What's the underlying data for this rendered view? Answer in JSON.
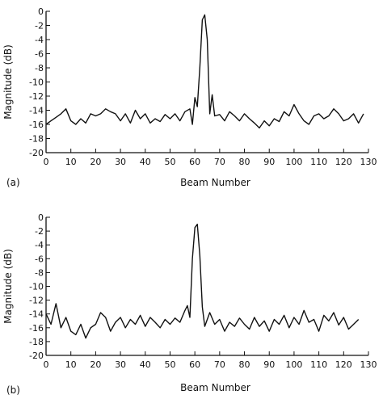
{
  "chart_data": [
    {
      "type": "line",
      "panel_label": "(a)",
      "xlabel": "Beam Number",
      "ylabel": "Magnitude (dB)",
      "xlim": [
        0,
        130
      ],
      "ylim": [
        -20,
        0
      ],
      "xticks": [
        0,
        10,
        20,
        30,
        40,
        50,
        60,
        70,
        80,
        90,
        100,
        110,
        120,
        130
      ],
      "yticks": [
        0,
        -2,
        -4,
        -6,
        -8,
        -10,
        -12,
        -14,
        -16,
        -18,
        -20
      ],
      "x": [
        0,
        2,
        4,
        6,
        8,
        10,
        12,
        14,
        16,
        18,
        20,
        22,
        24,
        26,
        28,
        30,
        32,
        34,
        36,
        38,
        40,
        42,
        44,
        46,
        48,
        50,
        52,
        54,
        56,
        58,
        59,
        60,
        61,
        62,
        63,
        64,
        65,
        66,
        67,
        68,
        70,
        72,
        74,
        76,
        78,
        80,
        82,
        84,
        86,
        88,
        90,
        92,
        94,
        96,
        98,
        100,
        102,
        104,
        106,
        108,
        110,
        112,
        114,
        116,
        118,
        120,
        122,
        124,
        126,
        128
      ],
      "y": [
        -16,
        -15.5,
        -15,
        -14.5,
        -13.8,
        -15.5,
        -16,
        -15.2,
        -15.8,
        -14.5,
        -14.8,
        -14.5,
        -13.8,
        -14.2,
        -14.5,
        -15.5,
        -14.5,
        -15.8,
        -14,
        -15.2,
        -14.5,
        -15.8,
        -15.2,
        -15.6,
        -14.6,
        -15.2,
        -14.5,
        -15.5,
        -14.2,
        -13.8,
        -16,
        -12.2,
        -13.5,
        -8,
        -1.2,
        -0.5,
        -4,
        -14.5,
        -11.8,
        -14.8,
        -14.6,
        -15.5,
        -14.2,
        -14.8,
        -15.5,
        -14.5,
        -15.2,
        -15.8,
        -16.5,
        -15.5,
        -16.2,
        -15.2,
        -15.6,
        -14.2,
        -14.8,
        -13.2,
        -14.5,
        -15.5,
        -16,
        -14.8,
        -14.5,
        -15.2,
        -14.8,
        -13.8,
        -14.5,
        -15.5,
        -15.2,
        -14.5,
        -15.8,
        -14.5
      ]
    },
    {
      "type": "line",
      "panel_label": "(b)",
      "xlabel": "Beam Number",
      "ylabel": "Magnitude (dB)",
      "xlim": [
        0,
        130
      ],
      "ylim": [
        -20,
        0
      ],
      "xticks": [
        0,
        10,
        20,
        30,
        40,
        50,
        60,
        70,
        80,
        90,
        100,
        110,
        120,
        130
      ],
      "yticks": [
        0,
        -2,
        -4,
        -6,
        -8,
        -10,
        -12,
        -14,
        -16,
        -18,
        -20
      ],
      "x": [
        0,
        2,
        4,
        6,
        8,
        10,
        12,
        14,
        16,
        18,
        20,
        22,
        24,
        26,
        28,
        30,
        32,
        34,
        36,
        38,
        40,
        42,
        44,
        46,
        48,
        50,
        52,
        54,
        56,
        57,
        58,
        59,
        60,
        61,
        62,
        63,
        64,
        66,
        68,
        70,
        72,
        74,
        76,
        78,
        80,
        82,
        84,
        86,
        88,
        90,
        92,
        94,
        96,
        98,
        100,
        102,
        104,
        106,
        108,
        110,
        112,
        114,
        116,
        118,
        120,
        122,
        124,
        126
      ],
      "y": [
        -14,
        -15.5,
        -12.5,
        -16,
        -14.5,
        -16.5,
        -17,
        -15.5,
        -17.5,
        -16,
        -15.5,
        -13.8,
        -14.5,
        -16.5,
        -15.2,
        -14.5,
        -16,
        -14.8,
        -15.5,
        -14.2,
        -15.8,
        -14.5,
        -15.2,
        -16,
        -14.8,
        -15.5,
        -14.6,
        -15.2,
        -13.5,
        -12.8,
        -14.5,
        -6,
        -1.5,
        -1,
        -5.5,
        -13,
        -15.8,
        -13.8,
        -15.5,
        -14.8,
        -16.5,
        -15.2,
        -15.8,
        -14.6,
        -15.5,
        -16.2,
        -14.5,
        -15.8,
        -15,
        -16.5,
        -14.8,
        -15.5,
        -14.2,
        -16,
        -14.5,
        -15.5,
        -13.5,
        -15.2,
        -14.8,
        -16.5,
        -14.2,
        -15,
        -13.8,
        -15.6,
        -14.5,
        -16.2,
        -15.5,
        -14.8
      ]
    }
  ]
}
